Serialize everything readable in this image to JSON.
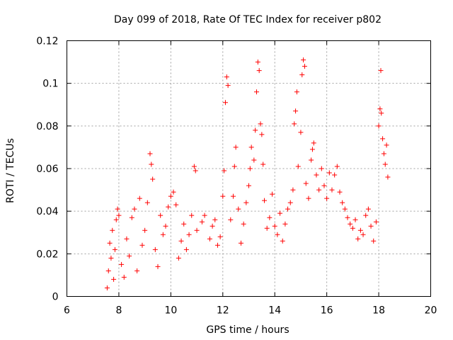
{
  "chart_data": {
    "type": "scatter",
    "title": "Day 099 of 2018, Rate Of TEC Index for receiver p802",
    "xlabel": "GPS time / hours",
    "ylabel": "ROTI / TECUs",
    "xlim": [
      6,
      20
    ],
    "ylim": [
      0,
      0.12
    ],
    "x_ticks": [
      "6",
      "8",
      "10",
      "12",
      "14",
      "16",
      "18",
      "20"
    ],
    "y_ticks": [
      "0",
      "0.02",
      "0.04",
      "0.06",
      "0.08",
      "0.1",
      "0.12"
    ],
    "grid": true,
    "marker": "plus",
    "series": [
      {
        "name": "ROTI",
        "color": "#ff0000",
        "points": [
          [
            7.55,
            0.004
          ],
          [
            7.6,
            0.012
          ],
          [
            7.65,
            0.025
          ],
          [
            7.7,
            0.018
          ],
          [
            7.75,
            0.031
          ],
          [
            7.8,
            0.008
          ],
          [
            7.85,
            0.022
          ],
          [
            7.9,
            0.036
          ],
          [
            7.95,
            0.041
          ],
          [
            8.0,
            0.038
          ],
          [
            8.1,
            0.015
          ],
          [
            8.2,
            0.009
          ],
          [
            8.3,
            0.027
          ],
          [
            8.4,
            0.019
          ],
          [
            8.5,
            0.037
          ],
          [
            8.6,
            0.041
          ],
          [
            8.7,
            0.012
          ],
          [
            8.8,
            0.046
          ],
          [
            8.9,
            0.024
          ],
          [
            9.0,
            0.031
          ],
          [
            9.1,
            0.044
          ],
          [
            9.2,
            0.067
          ],
          [
            9.25,
            0.062
          ],
          [
            9.3,
            0.055
          ],
          [
            9.4,
            0.022
          ],
          [
            9.5,
            0.014
          ],
          [
            9.6,
            0.038
          ],
          [
            9.7,
            0.029
          ],
          [
            9.8,
            0.033
          ],
          [
            9.9,
            0.042
          ],
          [
            10.0,
            0.047
          ],
          [
            10.1,
            0.049
          ],
          [
            10.2,
            0.043
          ],
          [
            10.3,
            0.018
          ],
          [
            10.4,
            0.026
          ],
          [
            10.5,
            0.034
          ],
          [
            10.6,
            0.022
          ],
          [
            10.7,
            0.029
          ],
          [
            10.8,
            0.038
          ],
          [
            10.9,
            0.061
          ],
          [
            10.95,
            0.059
          ],
          [
            11.0,
            0.031
          ],
          [
            11.2,
            0.035
          ],
          [
            11.3,
            0.038
          ],
          [
            11.5,
            0.027
          ],
          [
            11.6,
            0.033
          ],
          [
            11.7,
            0.036
          ],
          [
            11.8,
            0.024
          ],
          [
            11.9,
            0.028
          ],
          [
            12.0,
            0.047
          ],
          [
            12.05,
            0.059
          ],
          [
            12.1,
            0.091
          ],
          [
            12.15,
            0.103
          ],
          [
            12.2,
            0.099
          ],
          [
            12.3,
            0.036
          ],
          [
            12.4,
            0.047
          ],
          [
            12.45,
            0.061
          ],
          [
            12.5,
            0.07
          ],
          [
            12.6,
            0.041
          ],
          [
            12.7,
            0.025
          ],
          [
            12.8,
            0.034
          ],
          [
            12.9,
            0.044
          ],
          [
            13.0,
            0.052
          ],
          [
            13.05,
            0.06
          ],
          [
            13.1,
            0.07
          ],
          [
            13.2,
            0.064
          ],
          [
            13.25,
            0.078
          ],
          [
            13.3,
            0.096
          ],
          [
            13.35,
            0.11
          ],
          [
            13.4,
            0.106
          ],
          [
            13.45,
            0.081
          ],
          [
            13.5,
            0.076
          ],
          [
            13.55,
            0.062
          ],
          [
            13.6,
            0.045
          ],
          [
            13.7,
            0.032
          ],
          [
            13.8,
            0.037
          ],
          [
            13.9,
            0.048
          ],
          [
            14.0,
            0.033
          ],
          [
            14.1,
            0.029
          ],
          [
            14.2,
            0.039
          ],
          [
            14.3,
            0.026
          ],
          [
            14.4,
            0.034
          ],
          [
            14.5,
            0.041
          ],
          [
            14.6,
            0.044
          ],
          [
            14.7,
            0.05
          ],
          [
            14.75,
            0.081
          ],
          [
            14.8,
            0.087
          ],
          [
            14.85,
            0.096
          ],
          [
            14.9,
            0.061
          ],
          [
            15.0,
            0.077
          ],
          [
            15.05,
            0.104
          ],
          [
            15.1,
            0.111
          ],
          [
            15.15,
            0.108
          ],
          [
            15.2,
            0.053
          ],
          [
            15.3,
            0.046
          ],
          [
            15.4,
            0.064
          ],
          [
            15.45,
            0.069
          ],
          [
            15.5,
            0.072
          ],
          [
            15.6,
            0.057
          ],
          [
            15.7,
            0.05
          ],
          [
            15.8,
            0.06
          ],
          [
            15.9,
            0.052
          ],
          [
            16.0,
            0.046
          ],
          [
            16.1,
            0.058
          ],
          [
            16.2,
            0.05
          ],
          [
            16.3,
            0.057
          ],
          [
            16.4,
            0.061
          ],
          [
            16.5,
            0.049
          ],
          [
            16.6,
            0.044
          ],
          [
            16.7,
            0.041
          ],
          [
            16.8,
            0.037
          ],
          [
            16.9,
            0.034
          ],
          [
            17.0,
            0.032
          ],
          [
            17.1,
            0.036
          ],
          [
            17.2,
            0.027
          ],
          [
            17.3,
            0.031
          ],
          [
            17.4,
            0.029
          ],
          [
            17.5,
            0.038
          ],
          [
            17.6,
            0.041
          ],
          [
            17.7,
            0.033
          ],
          [
            17.8,
            0.026
          ],
          [
            17.9,
            0.035
          ],
          [
            18.0,
            0.08
          ],
          [
            18.05,
            0.088
          ],
          [
            18.08,
            0.106
          ],
          [
            18.1,
            0.086
          ],
          [
            18.15,
            0.074
          ],
          [
            18.2,
            0.067
          ],
          [
            18.25,
            0.062
          ],
          [
            18.3,
            0.071
          ],
          [
            18.35,
            0.056
          ]
        ]
      }
    ]
  }
}
